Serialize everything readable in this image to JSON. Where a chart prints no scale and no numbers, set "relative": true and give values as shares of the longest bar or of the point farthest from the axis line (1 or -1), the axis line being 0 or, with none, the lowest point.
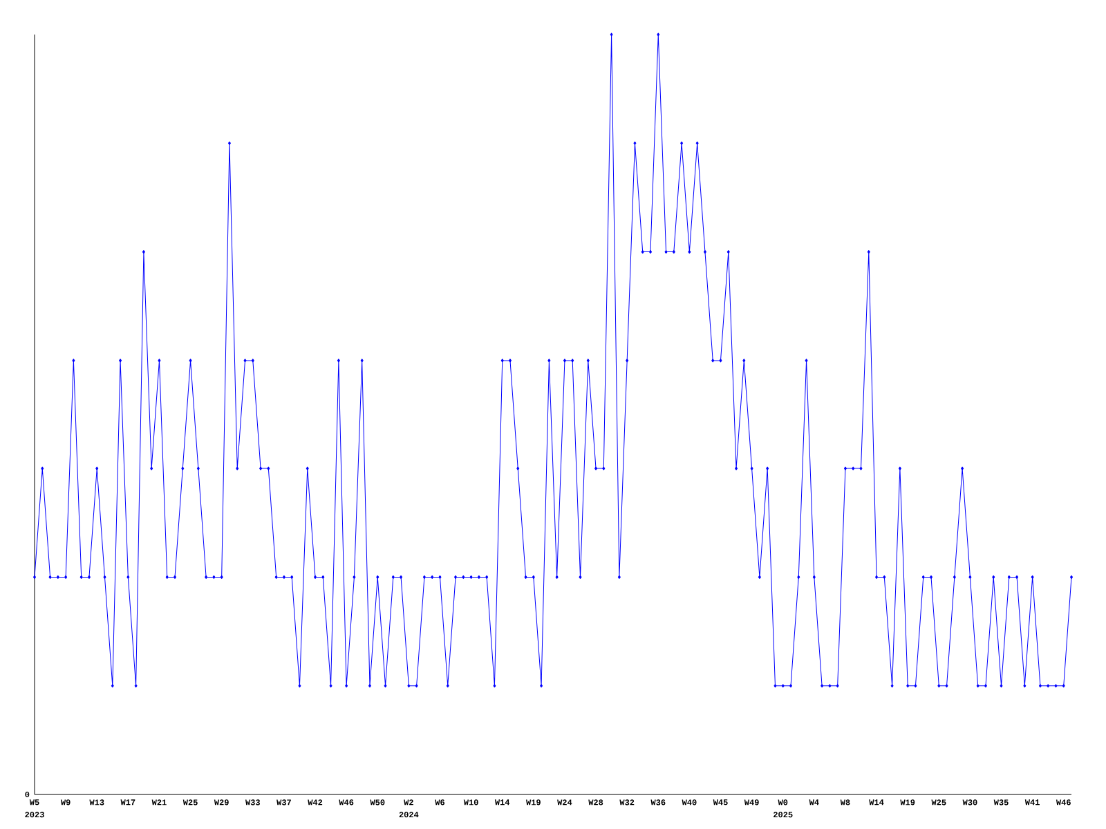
{
  "chart_data": {
    "type": "line",
    "relative": true,
    "color": "#0000ff",
    "marker": "diamond",
    "line_style": "solid",
    "categories": [
      "W5",
      null,
      null,
      null,
      "W9",
      null,
      null,
      null,
      "W13",
      null,
      null,
      null,
      "W17",
      null,
      null,
      null,
      "W21",
      null,
      null,
      null,
      "W25",
      null,
      null,
      null,
      "W29",
      null,
      null,
      null,
      "W33",
      null,
      null,
      null,
      "W37",
      null,
      null,
      null,
      "W42",
      null,
      null,
      null,
      "W46",
      null,
      null,
      null,
      "W50",
      null,
      null,
      null,
      "W2",
      null,
      null,
      null,
      "W6",
      null,
      null,
      null,
      "W10",
      null,
      null,
      null,
      "W14",
      null,
      null,
      null,
      "W19",
      null,
      null,
      null,
      "W24",
      null,
      null,
      null,
      "W28",
      null,
      null,
      null,
      "W32",
      null,
      null,
      null,
      "W36",
      null,
      null,
      null,
      "W40",
      null,
      null,
      null,
      "W45",
      null,
      null,
      null,
      "W49",
      null,
      null,
      null,
      "W0",
      null,
      null,
      null,
      "W4",
      null,
      null,
      null,
      "W8",
      null,
      null,
      null,
      "W14",
      null,
      null,
      null,
      "W19",
      null,
      null,
      null,
      "W25",
      null,
      null,
      null,
      "W30",
      null,
      null,
      null,
      "W35",
      null,
      null,
      null,
      "W41",
      null,
      null,
      null,
      "W46",
      null
    ],
    "values": [
      0.286,
      0.429,
      0.286,
      0.286,
      0.286,
      0.571,
      0.286,
      0.286,
      0.429,
      0.286,
      0.143,
      0.571,
      0.286,
      0.143,
      0.714,
      0.429,
      0.571,
      0.286,
      0.286,
      0.429,
      0.571,
      0.429,
      0.286,
      0.286,
      0.286,
      0.857,
      0.429,
      0.571,
      0.571,
      0.429,
      0.429,
      0.286,
      0.286,
      0.286,
      0.143,
      0.429,
      0.286,
      0.286,
      0.143,
      0.571,
      0.143,
      0.286,
      0.571,
      0.143,
      0.286,
      0.143,
      0.286,
      0.286,
      0.143,
      0.143,
      0.286,
      0.286,
      0.286,
      0.143,
      0.286,
      0.286,
      0.286,
      0.286,
      0.286,
      0.143,
      0.571,
      0.571,
      0.429,
      0.286,
      0.286,
      0.143,
      0.571,
      0.286,
      0.571,
      0.571,
      0.286,
      0.571,
      0.429,
      0.429,
      1,
      0.286,
      0.571,
      0.857,
      0.714,
      0.714,
      1,
      0.714,
      0.714,
      0.857,
      0.714,
      0.857,
      0.714,
      0.571,
      0.571,
      0.714,
      0.429,
      0.571,
      0.429,
      0.286,
      0.429,
      0.143,
      0.143,
      0.143,
      0.286,
      0.571,
      0.286,
      0.143,
      0.143,
      0.143,
      0.429,
      0.429,
      0.429,
      0.714,
      0.286,
      0.286,
      0.143,
      0.429,
      0.143,
      0.143,
      0.286,
      0.286,
      0.143,
      0.143,
      0.286,
      0.429,
      0.286,
      0.143,
      0.143,
      0.286,
      0.143,
      0.286,
      0.286,
      0.143,
      0.286,
      0.143,
      0.143,
      0.143,
      0.143,
      0.286
    ],
    "annotations": [
      "0",
      "2023",
      "2024",
      "2025"
    ]
  }
}
